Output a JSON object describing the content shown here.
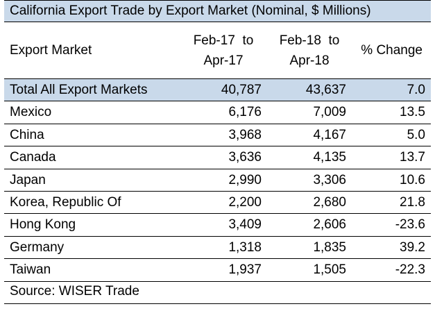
{
  "title": "California Export Trade by Export Market (Nominal, $ Millions)",
  "headers": {
    "market": "Export Market",
    "period1_line1": "Feb-17  to",
    "period1_line2": "Apr-17",
    "period2_line1": "Feb-18  to",
    "period2_line2": "Apr-18",
    "change": "% Change"
  },
  "source": "Source: WISER Trade",
  "colors": {
    "header_fill": "#c9d9ea",
    "rule": "#000000"
  },
  "chart_data": {
    "type": "table",
    "title": "California Export Trade by Export Market (Nominal, $ Millions)",
    "columns": [
      "Export Market",
      "Feb-17 to Apr-17",
      "Feb-18 to Apr-18",
      "% Change"
    ],
    "rows": [
      [
        "Total All Export Markets",
        "40,787",
        "43,637",
        "7.0"
      ],
      [
        "Mexico",
        "6,176",
        "7,009",
        "13.5"
      ],
      [
        "China",
        "3,968",
        "4,167",
        "5.0"
      ],
      [
        "Canada",
        "3,636",
        "4,135",
        "13.7"
      ],
      [
        "Japan",
        "2,990",
        "3,306",
        "10.6"
      ],
      [
        "Korea, Republic Of",
        "2,200",
        "2,680",
        "21.8"
      ],
      [
        "Hong Kong",
        "3,409",
        "2,606",
        "-23.6"
      ],
      [
        "Germany",
        "1,318",
        "1,835",
        "39.2"
      ],
      [
        "Taiwan",
        "1,937",
        "1,505",
        "-22.3"
      ]
    ]
  }
}
